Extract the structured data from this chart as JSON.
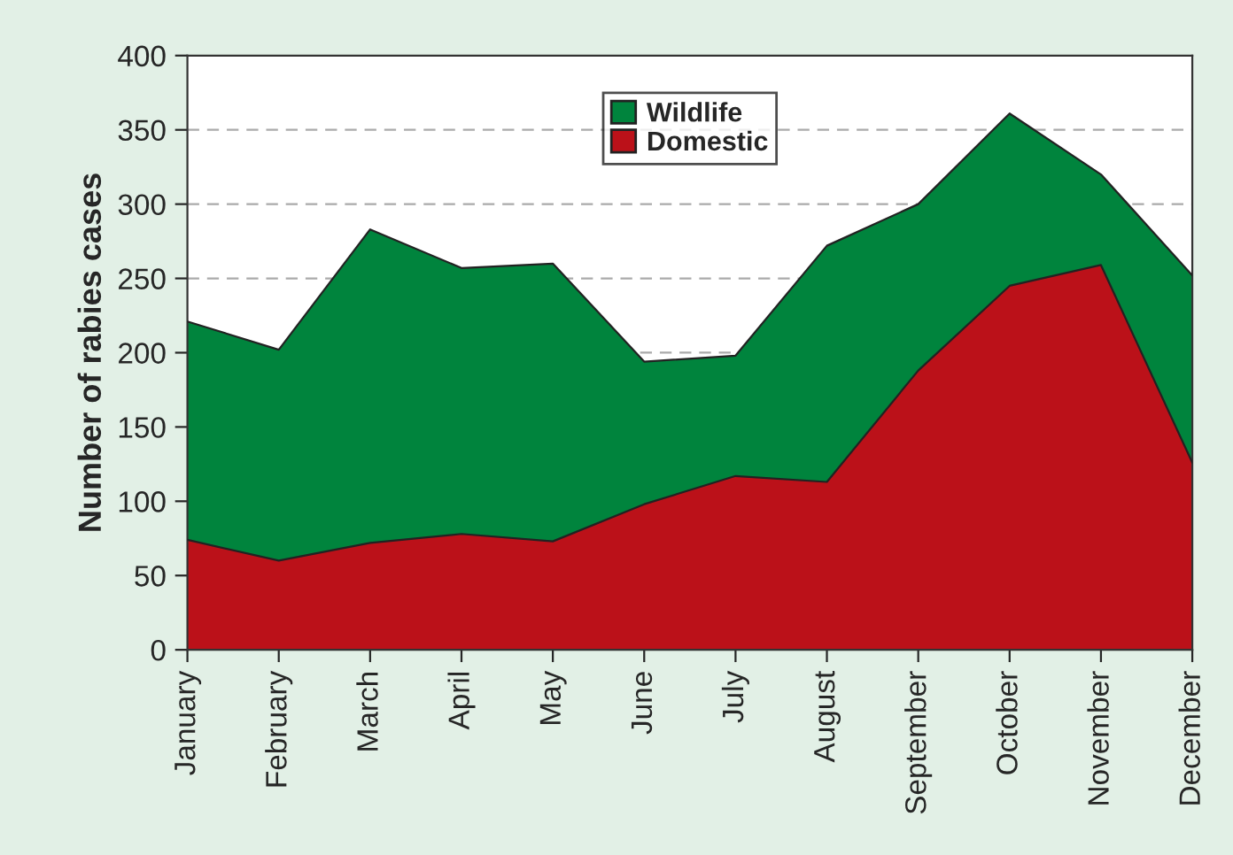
{
  "chart_data": {
    "type": "area",
    "stacked": true,
    "ylabel": "Number of rabies cases",
    "categories": [
      "January",
      "February",
      "March",
      "April",
      "May",
      "June",
      "July",
      "August",
      "September",
      "October",
      "November",
      "December"
    ],
    "series": [
      {
        "name": "Domestic",
        "color": "#bb1119",
        "values": [
          74,
          60,
          72,
          78,
          73,
          98,
          117,
          113,
          188,
          245,
          259,
          126
        ]
      },
      {
        "name": "Wildlife",
        "color": "#00843d",
        "values": [
          147,
          142,
          211,
          179,
          187,
          96,
          81,
          159,
          112,
          116,
          61,
          126
        ]
      }
    ],
    "ylim": [
      0,
      400
    ],
    "yticks": [
      0,
      50,
      100,
      150,
      200,
      250,
      300,
      350,
      400
    ],
    "grid": "y",
    "legend": "top"
  }
}
